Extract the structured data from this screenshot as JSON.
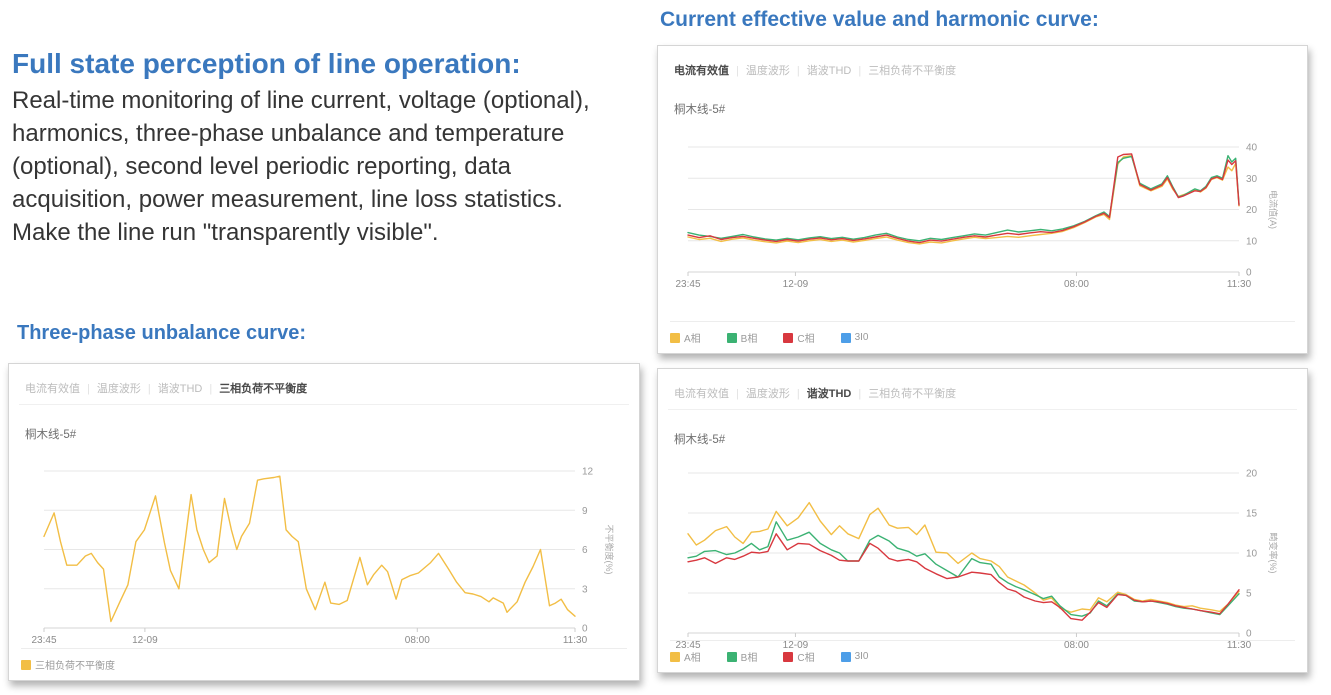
{
  "page": {
    "title_heading": "Full state perception of line operation:",
    "description": "Real-time monitoring of line current, voltage (optional), harmonics, three-phase unbalance and temperature (optional), second level periodic reporting, data acquisition, power measurement, line loss statistics. Make the line run \"transparently visible\".",
    "left_chart_heading": "Three-phase unbalance curve:",
    "right_chart_heading": "Current effective value and harmonic curve:"
  },
  "colors": {
    "heading_blue": "#3A78BE",
    "body_text": "#353535",
    "phase_a_yellow": "#F2BE45",
    "phase_b_green": "#3BB273",
    "phase_c_red": "#D8383F",
    "zero_seq_blue": "#4D9EE8",
    "tab_active": "#4A4A4A",
    "tab_inactive": "#BCBCBC",
    "axis_text": "#999999",
    "gridline": "#E7E7E7"
  },
  "chart_data": [
    {
      "id": "three_phase_unbalance",
      "type": "line",
      "tabs": [
        {
          "label": "电流有效值",
          "name": "tab-current-rms",
          "active": false
        },
        {
          "label": "温度波形",
          "name": "tab-temperature-waveform",
          "active": false
        },
        {
          "label": "谐波THD",
          "name": "tab-harmonic-thd",
          "active": false
        },
        {
          "label": "三相负荷不平衡度",
          "name": "tab-unbalance",
          "active": true
        }
      ],
      "tab_divider": true,
      "device_label": "桐木线-5#",
      "ylabel": "不平衡度(%)",
      "ylim": [
        0,
        12
      ],
      "yticks": [
        0,
        3,
        6,
        9,
        12
      ],
      "xticks": [
        {
          "label": "23:45",
          "pos": 0
        },
        {
          "label": "12-09",
          "pos": 19
        },
        {
          "label": "08:00",
          "pos": 70.3
        },
        {
          "label": "11:30",
          "pos": 100
        }
      ],
      "legend": [
        {
          "label": "三相负荷不平衡度",
          "name": "unbalance",
          "color": "#F2BE45"
        }
      ],
      "x": [
        0,
        1.9,
        3.1,
        4.3,
        6.2,
        7.8,
        8.9,
        10.1,
        11.2,
        12.6,
        14.3,
        15.8,
        17.3,
        18.9,
        21,
        22.7,
        23.8,
        25.4,
        27.7,
        28.8,
        30,
        31.1,
        32.6,
        34,
        35.3,
        36.3,
        37.2,
        38.7,
        40.2,
        41.4,
        43.3,
        44.4,
        45.6,
        46.7,
        47.9,
        49.4,
        51.1,
        52.9,
        54,
        55.6,
        57.1,
        59.5,
        60.9,
        62.1,
        63.6,
        64.7,
        66.3,
        67.4,
        68.9,
        70.5,
        72.8,
        74.3,
        76.2,
        77.7,
        79.3,
        80.8,
        82.3,
        83.8,
        84.6,
        86.5,
        87.2,
        89.1,
        90.6,
        92.1,
        93.5,
        95.2,
        96.3,
        97.4,
        98.6,
        100
      ],
      "series": [
        {
          "name": "三相负荷不平衡度",
          "legend_name": "unbalance",
          "color": "#F2BE45",
          "values": [
            7,
            8.8,
            6.6,
            4.8,
            4.8,
            5.5,
            5.7,
            5,
            4.5,
            0.5,
            2,
            3.3,
            6.6,
            7.5,
            10.1,
            6.5,
            4.4,
            3,
            10.2,
            7.5,
            6,
            5,
            5.5,
            9.9,
            7.5,
            6,
            7,
            8,
            11.3,
            11.4,
            11.5,
            11.6,
            7.5,
            7,
            6.6,
            3,
            1.4,
            3.5,
            1.9,
            1.8,
            2.1,
            5.4,
            3.3,
            4.1,
            4.8,
            4.3,
            2.2,
            3.7,
            4,
            4.2,
            5,
            5.7,
            4.5,
            3.5,
            2.7,
            2.6,
            2.4,
            2,
            2.3,
            1.9,
            1.2,
            2,
            3.5,
            4.7,
            6,
            1.7,
            1.9,
            2.2,
            1.4,
            0.9
          ]
        }
      ]
    },
    {
      "id": "current_rms",
      "type": "line",
      "tabs": [
        {
          "label": "电流有效值",
          "name": "tab-current-rms",
          "active": true
        },
        {
          "label": "温度波形",
          "name": "tab-temperature-waveform",
          "active": false
        },
        {
          "label": "谐波THD",
          "name": "tab-harmonic-thd",
          "active": false
        },
        {
          "label": "三相负荷不平衡度",
          "name": "tab-unbalance",
          "active": false
        }
      ],
      "tab_divider": false,
      "device_label": "桐木线-5#",
      "ylabel": "电流值(A)",
      "ylim": [
        0,
        40
      ],
      "yticks": [
        0,
        10,
        20,
        30,
        40
      ],
      "xticks": [
        {
          "label": "23:45",
          "pos": 0
        },
        {
          "label": "12-09",
          "pos": 19.5
        },
        {
          "label": "08:00",
          "pos": 70.5
        },
        {
          "label": "11:30",
          "pos": 100
        }
      ],
      "legend": [
        {
          "label": "A相",
          "name": "phase-a",
          "color": "#F2BE45"
        },
        {
          "label": "B相",
          "name": "phase-b",
          "color": "#3BB273"
        },
        {
          "label": "C相",
          "name": "phase-c",
          "color": "#D8383F"
        },
        {
          "label": "3I0",
          "name": "zero-sequence-3i0",
          "color": "#4D9EE8"
        }
      ],
      "x": [
        0,
        2,
        4,
        6,
        8,
        10,
        12,
        14,
        16,
        18,
        20,
        22,
        24,
        26,
        28,
        30,
        32,
        34,
        36,
        38,
        40,
        42,
        44,
        46,
        48,
        50,
        52,
        54,
        56,
        58,
        60,
        62,
        64,
        66,
        68,
        70,
        72,
        74,
        75.5,
        76.5,
        78,
        79,
        80.5,
        82,
        84,
        86,
        87,
        88,
        89,
        90,
        91,
        92,
        93,
        94,
        95,
        96,
        97,
        98,
        98.7,
        99.4,
        100
      ],
      "series": [
        {
          "name": "A相",
          "legend_name": "phase-a",
          "color": "#F2BE45",
          "values": [
            11.2,
            10.4,
            10.8,
            9.8,
            10.5,
            10.9,
            10.2,
            9.7,
            9.3,
            9.9,
            9.4,
            10,
            10.4,
            9.8,
            10.2,
            9.6,
            10.1,
            10.7,
            11.2,
            10.2,
            9.4,
            9,
            9.6,
            9.3,
            10,
            10.6,
            11.1,
            10.7,
            11,
            11.4,
            11.1,
            11.6,
            12,
            12.4,
            13,
            14.2,
            15.8,
            17.6,
            18.4,
            16.8,
            34.5,
            36.8,
            37.2,
            27.6,
            26,
            27.4,
            29.8,
            26.4,
            24.2,
            24.8,
            25.4,
            26.2,
            25.6,
            26.8,
            29.6,
            30.2,
            29.4,
            33.6,
            32.4,
            34.8,
            21.2
          ]
        },
        {
          "name": "B相",
          "legend_name": "phase-b",
          "color": "#3BB273",
          "values": [
            12.6,
            11.8,
            11.4,
            10.8,
            11.4,
            12,
            11.2,
            10.6,
            10.2,
            10.8,
            10.3,
            10.9,
            11.3,
            10.7,
            11.1,
            10.5,
            11,
            11.8,
            12.4,
            11.2,
            10.4,
            10,
            10.8,
            10.4,
            11,
            11.6,
            12.2,
            11.8,
            12.6,
            13.4,
            12.8,
            13.2,
            13.6,
            13.2,
            13.8,
            14.8,
            16.2,
            18,
            19.2,
            17.8,
            35,
            36.4,
            37,
            28.4,
            26.6,
            28.2,
            30.8,
            27.2,
            24,
            24.6,
            25.6,
            26.6,
            26,
            27.4,
            30.2,
            30.8,
            30,
            37.2,
            35.2,
            36.4,
            21.8
          ]
        },
        {
          "name": "C相",
          "legend_name": "phase-c",
          "color": "#D8383F",
          "values": [
            11.8,
            11,
            11.6,
            10.4,
            11,
            11.4,
            10.8,
            10.2,
            9.8,
            10.4,
            9.9,
            10.5,
            10.9,
            10.3,
            10.7,
            10.1,
            10.6,
            11.2,
            11.8,
            10.8,
            9.9,
            9.4,
            10.2,
            9.9,
            10.5,
            11.1,
            11.6,
            11.2,
            11.8,
            12.4,
            12,
            12.5,
            12.9,
            12.6,
            13.3,
            14.5,
            16,
            17.8,
            18.8,
            17.4,
            36.8,
            37.6,
            37.8,
            28,
            26.2,
            27.8,
            30.2,
            26.8,
            23.8,
            24.4,
            25.2,
            26,
            25.8,
            27,
            29.8,
            30.4,
            29.6,
            35.8,
            34.4,
            35.6,
            21.4
          ]
        }
      ]
    },
    {
      "id": "harmonic_thd",
      "type": "line",
      "tabs": [
        {
          "label": "电流有效值",
          "name": "tab-current-rms",
          "active": false
        },
        {
          "label": "温度波形",
          "name": "tab-temperature-waveform",
          "active": false
        },
        {
          "label": "谐波THD",
          "name": "tab-harmonic-thd",
          "active": true
        },
        {
          "label": "三相负荷不平衡度",
          "name": "tab-unbalance",
          "active": false
        }
      ],
      "tab_divider": true,
      "device_label": "桐木线-5#",
      "ylabel": "畸变率(%)",
      "ylim": [
        0,
        20
      ],
      "yticks": [
        0,
        5,
        10,
        15,
        20
      ],
      "xticks": [
        {
          "label": "23:45",
          "pos": 0
        },
        {
          "label": "12-09",
          "pos": 19.5
        },
        {
          "label": "08:00",
          "pos": 70.5
        },
        {
          "label": "11:30",
          "pos": 100
        }
      ],
      "legend": [
        {
          "label": "A相",
          "name": "phase-a",
          "color": "#F2BE45"
        },
        {
          "label": "B相",
          "name": "phase-b",
          "color": "#3BB273"
        },
        {
          "label": "C相",
          "name": "phase-c",
          "color": "#D8383F"
        },
        {
          "label": "3I0",
          "name": "zero-sequence-3i0",
          "color": "#4D9EE8"
        }
      ],
      "x": [
        0,
        1.5,
        3,
        5,
        7,
        8.5,
        10,
        11.5,
        13,
        14.5,
        16,
        18,
        20,
        22,
        24,
        26,
        27.5,
        29,
        31,
        33,
        34.5,
        36.5,
        38,
        40,
        41.5,
        43,
        45,
        47,
        49,
        51.5,
        53,
        55,
        56.5,
        58,
        59.5,
        61,
        63,
        64.5,
        66,
        67.5,
        69.5,
        71.5,
        73,
        74.5,
        76,
        78,
        79.5,
        81,
        82.5,
        84,
        85.5,
        87,
        88.5,
        90,
        91.5,
        93,
        95,
        96.5,
        98,
        100
      ],
      "series": [
        {
          "name": "A相",
          "legend_name": "phase-a",
          "color": "#F2BE45",
          "values": [
            12.4,
            11,
            11.6,
            12.8,
            13.3,
            12,
            11.2,
            12.6,
            12.7,
            13,
            15.2,
            13.4,
            14.4,
            16.3,
            14,
            12.3,
            13.4,
            12.4,
            11.8,
            14.8,
            15.6,
            13.5,
            13.1,
            13.2,
            12.3,
            13.5,
            10.1,
            10,
            8.7,
            10,
            9.3,
            9,
            8.3,
            7,
            6.5,
            6,
            5,
            4.1,
            4.4,
            3.1,
            2.6,
            3,
            2.9,
            4.4,
            3.9,
            5.1,
            4.8,
            4.2,
            4,
            4.2,
            4,
            3.8,
            3.5,
            3.3,
            3.4,
            3.1,
            2.9,
            2.7,
            3.6,
            5.2
          ]
        },
        {
          "name": "B相",
          "legend_name": "phase-b",
          "color": "#3BB273",
          "values": [
            9.4,
            9.6,
            10.2,
            10.3,
            9.8,
            10,
            10.5,
            11.2,
            10.4,
            10.8,
            13.9,
            11.6,
            12,
            12.6,
            11.2,
            10.4,
            10,
            9,
            9,
            11.6,
            12.2,
            11.5,
            10.6,
            10.2,
            9.6,
            9.9,
            8.6,
            7.8,
            7,
            9.3,
            8.8,
            8.6,
            7,
            6.3,
            5.8,
            5.4,
            4.8,
            4.3,
            4.6,
            3.4,
            2.3,
            2.1,
            2.5,
            4,
            3.4,
            4.9,
            4.7,
            4,
            3.9,
            4,
            3.8,
            3.6,
            3.3,
            3.1,
            3,
            2.8,
            2.5,
            2.3,
            3.4,
            4.9
          ]
        },
        {
          "name": "C相",
          "legend_name": "phase-c",
          "color": "#D8383F",
          "values": [
            8.9,
            9.1,
            9.4,
            8.7,
            9.4,
            9.2,
            9.6,
            10.1,
            10,
            10.2,
            12.4,
            10.4,
            11.2,
            11.1,
            10.3,
            9.7,
            9.1,
            9,
            9,
            11.2,
            10.6,
            9.3,
            9,
            9.2,
            8.9,
            8.1,
            7.4,
            6.8,
            7,
            7.6,
            7.5,
            7.3,
            6.3,
            5.5,
            5.2,
            4.5,
            4,
            3.8,
            3.9,
            3.2,
            1.8,
            1.6,
            2.6,
            3.8,
            3.2,
            4.8,
            4.7,
            4.1,
            3.9,
            4,
            3.9,
            3.7,
            3.4,
            3.2,
            3,
            2.8,
            2.6,
            2.4,
            3.6,
            5.4
          ]
        }
      ]
    }
  ]
}
